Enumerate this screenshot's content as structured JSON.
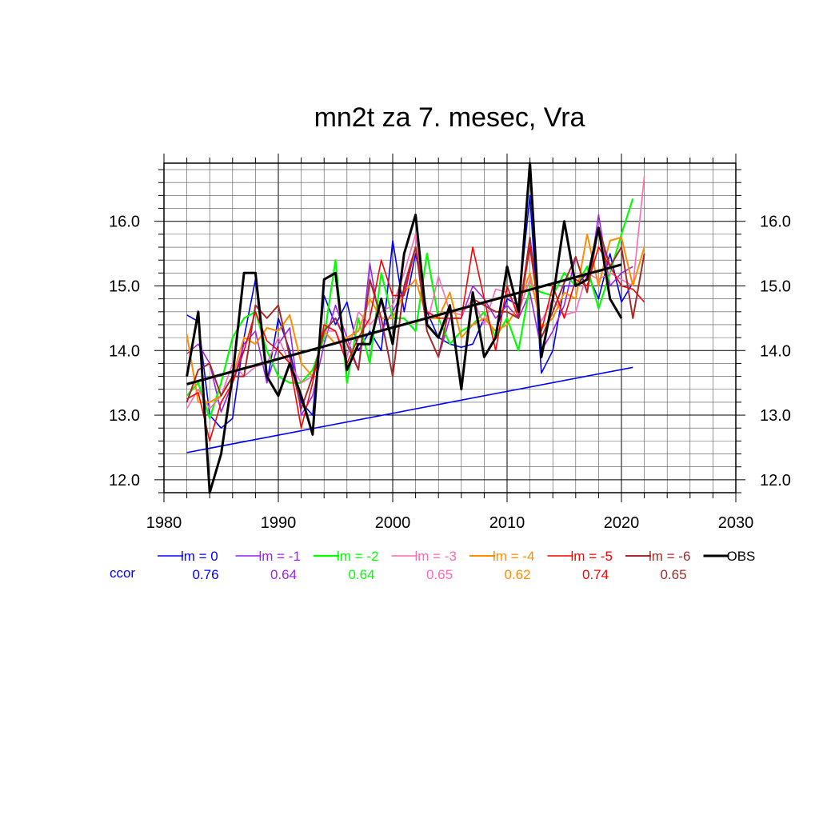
{
  "chart_data": {
    "type": "line",
    "title": "mn2t za 7. mesec, Vra",
    "xlabel": "",
    "ylabel": "",
    "xlim": [
      1980,
      2030
    ],
    "ylim": [
      11.8,
      16.9
    ],
    "x_ticks": [
      "1980",
      "1990",
      "2000",
      "2010",
      "2020",
      "2030"
    ],
    "y_ticks": [
      "12.0",
      "13.0",
      "14.0",
      "15.0",
      "16.0"
    ],
    "grid": true,
    "legend_position": "bottom",
    "ccor_label": "ccor",
    "series": [
      {
        "name": "lm = 0",
        "color": "#0000ff",
        "ccor": "0.76",
        "width": 1.6,
        "x": [
          1982,
          1983,
          1984,
          1985,
          1986,
          1987,
          1988,
          1989,
          1990,
          1991,
          1992,
          1993,
          1994,
          1995,
          1996,
          1997,
          1998,
          1999,
          2000,
          2001,
          2002,
          2003,
          2004,
          2005,
          2006,
          2007,
          2008,
          2009,
          2010,
          2011,
          2012,
          2013,
          2014,
          2015,
          2016,
          2017,
          2018,
          2019,
          2020,
          2021
        ],
        "values": [
          14.55,
          14.45,
          13.0,
          12.8,
          12.95,
          14.2,
          15.1,
          13.5,
          14.5,
          14.0,
          13.2,
          13.0,
          14.85,
          14.4,
          14.75,
          14.0,
          14.3,
          14.0,
          15.7,
          14.6,
          15.5,
          14.6,
          14.2,
          14.1,
          14.05,
          14.1,
          14.5,
          14.3,
          14.8,
          14.7,
          16.4,
          13.65,
          14.0,
          15.0,
          15.0,
          15.2,
          14.8,
          15.5,
          14.75,
          15.05
        ]
      },
      {
        "name": "lm = -1",
        "color": "#a020f0",
        "ccor": "0.64",
        "width": 1.6,
        "x": [
          1982,
          1983,
          1984,
          1985,
          1986,
          1987,
          1988,
          1989,
          1990,
          1991,
          1992,
          1993,
          1994,
          1995,
          1996,
          1997,
          1998,
          1999,
          2000,
          2001,
          2002,
          2003,
          2004,
          2005,
          2006,
          2007,
          2008,
          2009,
          2010,
          2011,
          2012,
          2013,
          2014,
          2015,
          2016,
          2017,
          2018,
          2019,
          2020,
          2021
        ],
        "values": [
          13.95,
          14.1,
          13.8,
          13.05,
          13.5,
          14.1,
          14.3,
          13.5,
          14.1,
          14.35,
          13.0,
          13.3,
          14.1,
          14.7,
          14.2,
          13.7,
          15.35,
          14.3,
          14.6,
          14.95,
          15.6,
          14.3,
          13.9,
          14.5,
          14.5,
          15.0,
          14.8,
          14.5,
          14.7,
          14.5,
          14.9,
          14.0,
          14.3,
          14.7,
          15.45,
          14.9,
          16.1,
          15.0,
          15.2,
          15.3
        ]
      },
      {
        "name": "lm = -2",
        "color": "#00ff00",
        "ccor": "0.64",
        "width": 2.2,
        "x": [
          1982,
          1983,
          1984,
          1985,
          1986,
          1987,
          1988,
          1989,
          1990,
          1991,
          1992,
          1993,
          1994,
          1995,
          1996,
          1997,
          1998,
          1999,
          2000,
          2001,
          2002,
          2003,
          2004,
          2005,
          2006,
          2007,
          2008,
          2009,
          2010,
          2011,
          2012,
          2013,
          2014,
          2015,
          2016,
          2017,
          2018,
          2019,
          2020,
          2021
        ],
        "values": [
          13.3,
          13.5,
          12.95,
          13.5,
          14.2,
          14.5,
          14.6,
          14.0,
          13.6,
          13.5,
          13.5,
          13.7,
          14.2,
          15.4,
          13.5,
          14.5,
          13.8,
          15.2,
          14.5,
          14.5,
          14.3,
          15.5,
          14.5,
          14.1,
          14.3,
          14.4,
          14.6,
          14.2,
          14.5,
          14.0,
          15.0,
          14.9,
          14.85,
          15.2,
          15.0,
          15.3,
          14.65,
          15.2,
          15.8,
          16.35
        ]
      },
      {
        "name": "lm = -3",
        "color": "#ff69b4",
        "ccor": "0.65",
        "width": 1.6,
        "x": [
          1982,
          1983,
          1984,
          1985,
          1986,
          1987,
          1988,
          1989,
          1990,
          1991,
          1992,
          1993,
          1994,
          1995,
          1996,
          1997,
          1998,
          1999,
          2000,
          2001,
          2002,
          2003,
          2004,
          2005,
          2006,
          2007,
          2008,
          2009,
          2010,
          2011,
          2012,
          2013,
          2014,
          2015,
          2016,
          2017,
          2018,
          2019,
          2020,
          2021,
          2022
        ],
        "values": [
          13.1,
          13.4,
          13.1,
          13.3,
          13.8,
          13.6,
          13.75,
          13.8,
          14.2,
          13.8,
          13.5,
          13.6,
          14.3,
          14.3,
          13.9,
          14.6,
          14.4,
          14.6,
          14.7,
          15.2,
          15.8,
          14.4,
          15.15,
          14.6,
          14.55,
          14.8,
          14.4,
          14.95,
          14.9,
          14.6,
          15.1,
          14.45,
          14.8,
          14.55,
          14.6,
          15.2,
          15.1,
          15.2,
          15.1,
          15.0,
          16.7
        ]
      },
      {
        "name": "lm = -4",
        "color": "#ff8c00",
        "ccor": "0.62",
        "width": 2.0,
        "x": [
          1982,
          1983,
          1984,
          1985,
          1986,
          1987,
          1988,
          1989,
          1990,
          1991,
          1992,
          1993,
          1994,
          1995,
          1996,
          1997,
          1998,
          1999,
          2000,
          2001,
          2002,
          2003,
          2004,
          2005,
          2006,
          2007,
          2008,
          2009,
          2010,
          2011,
          2012,
          2013,
          2014,
          2015,
          2016,
          2017,
          2018,
          2019,
          2020,
          2021,
          2022
        ],
        "values": [
          14.25,
          13.2,
          13.2,
          13.3,
          13.6,
          14.2,
          14.1,
          14.35,
          14.3,
          14.55,
          13.8,
          13.6,
          14.3,
          14.1,
          14.2,
          14.3,
          14.8,
          14.5,
          14.5,
          14.9,
          15.1,
          14.5,
          14.5,
          14.9,
          14.2,
          14.4,
          14.5,
          14.3,
          14.4,
          14.7,
          15.2,
          14.35,
          14.5,
          14.9,
          14.8,
          15.8,
          15.0,
          15.7,
          15.75,
          15.0,
          15.6
        ]
      },
      {
        "name": "lm = -5",
        "color": "#ff0000",
        "ccor": "0.74",
        "width": 1.6,
        "x": [
          1982,
          1983,
          1984,
          1985,
          1986,
          1987,
          1988,
          1989,
          1990,
          1991,
          1992,
          1993,
          1994,
          1995,
          1996,
          1997,
          1998,
          1999,
          2000,
          2001,
          2002,
          2003,
          2004,
          2005,
          2006,
          2007,
          2008,
          2009,
          2010,
          2011,
          2012,
          2013,
          2014,
          2015,
          2016,
          2017,
          2018,
          2019,
          2020,
          2021,
          2022
        ],
        "values": [
          13.25,
          13.35,
          12.6,
          13.2,
          13.5,
          14.0,
          14.6,
          14.15,
          14.0,
          13.8,
          12.8,
          13.5,
          14.4,
          14.3,
          13.8,
          14.2,
          14.5,
          15.4,
          14.85,
          14.85,
          15.6,
          14.6,
          14.5,
          14.5,
          14.5,
          15.6,
          14.8,
          14.0,
          15.0,
          14.5,
          15.6,
          14.3,
          15.0,
          14.5,
          15.1,
          15.0,
          15.6,
          15.3,
          15.0,
          14.95,
          14.75
        ]
      },
      {
        "name": "lm = -6",
        "color": "#a52a2a",
        "ccor": "0.65",
        "width": 2.0,
        "x": [
          1982,
          1983,
          1984,
          1985,
          1986,
          1987,
          1988,
          1989,
          1990,
          1991,
          1992,
          1993,
          1994,
          1995,
          1996,
          1997,
          1998,
          1999,
          2000,
          2001,
          2002,
          2003,
          2004,
          2005,
          2006,
          2007,
          2008,
          2009,
          2010,
          2011,
          2012,
          2013,
          2014,
          2015,
          2016,
          2017,
          2018,
          2019,
          2020,
          2021,
          2022
        ],
        "values": [
          13.2,
          13.7,
          13.8,
          13.3,
          13.6,
          13.6,
          14.7,
          14.5,
          14.7,
          13.9,
          13.1,
          13.6,
          14.3,
          14.5,
          14.1,
          13.7,
          15.1,
          14.5,
          13.6,
          15.0,
          15.6,
          14.3,
          13.9,
          14.7,
          13.4,
          14.8,
          14.7,
          14.6,
          14.6,
          14.5,
          15.75,
          14.2,
          14.6,
          15.05,
          15.45,
          14.9,
          15.9,
          15.3,
          15.6,
          14.5,
          15.5
        ]
      },
      {
        "name": "OBS",
        "color": "#000000",
        "ccor": "",
        "width": 3.0,
        "x": [
          1982,
          1983,
          1984,
          1985,
          1986,
          1987,
          1988,
          1989,
          1990,
          1991,
          1992,
          1993,
          1994,
          1995,
          1996,
          1997,
          1998,
          1999,
          2000,
          2001,
          2002,
          2003,
          2004,
          2005,
          2006,
          2007,
          2008,
          2009,
          2010,
          2011,
          2012,
          2013,
          2014,
          2015,
          2016,
          2017,
          2018,
          2019,
          2020
        ],
        "values": [
          13.6,
          14.6,
          11.8,
          12.4,
          13.6,
          15.2,
          15.2,
          13.6,
          13.3,
          13.8,
          13.3,
          12.7,
          15.1,
          15.2,
          13.7,
          14.1,
          14.1,
          14.8,
          14.1,
          15.5,
          16.1,
          14.4,
          14.2,
          14.7,
          13.4,
          14.9,
          13.9,
          14.2,
          15.3,
          14.6,
          16.9,
          13.9,
          14.8,
          16.0,
          15.0,
          15.1,
          15.9,
          14.8,
          14.5
        ]
      }
    ],
    "trends": [
      {
        "name": "lm = 0 trend",
        "color": "#0000ff",
        "width": 1.6,
        "x": [
          1982,
          2021
        ],
        "values": [
          12.42,
          13.74
        ]
      },
      {
        "name": "OBS trend",
        "color": "#000000",
        "width": 3.0,
        "x": [
          1982,
          2020
        ],
        "values": [
          13.48,
          15.33
        ]
      }
    ]
  }
}
